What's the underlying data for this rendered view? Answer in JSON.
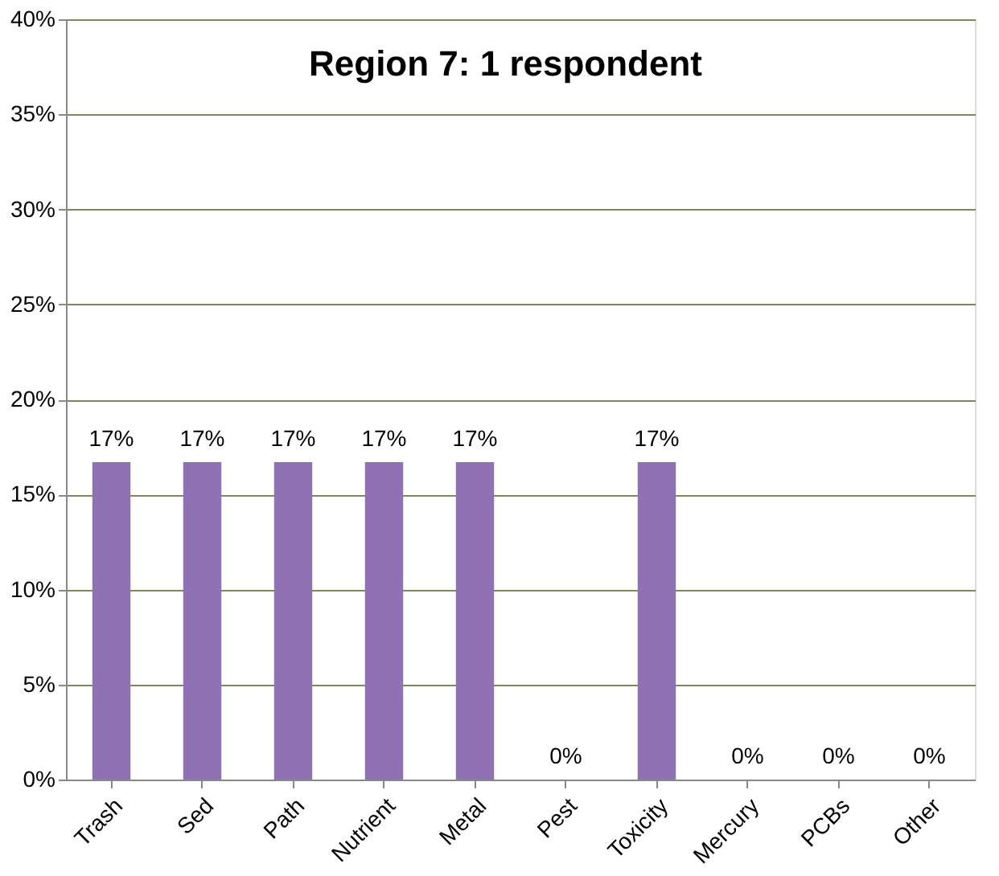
{
  "chart_data": {
    "type": "bar",
    "title": "Region 7: 1 respondent",
    "categories": [
      "Trash",
      "Sed",
      "Path",
      "Nutrient",
      "Metal",
      "Pest",
      "Toxicity",
      "Mercury",
      "PCBs",
      "Other"
    ],
    "values": [
      16.7,
      16.7,
      16.7,
      16.7,
      16.7,
      0,
      16.7,
      0,
      0,
      0
    ],
    "value_labels": [
      "17%",
      "17%",
      "17%",
      "17%",
      "17%",
      "0%",
      "17%",
      "0%",
      "0%",
      "0%"
    ],
    "color": "#8e72b4",
    "ylim": [
      0,
      40
    ],
    "yticks": [
      {
        "value": 0,
        "label": "0%"
      },
      {
        "value": 5,
        "label": "5%"
      },
      {
        "value": 10,
        "label": "10%"
      },
      {
        "value": 15,
        "label": "15%"
      },
      {
        "value": 20,
        "label": "20%"
      },
      {
        "value": 25,
        "label": "25%"
      },
      {
        "value": 30,
        "label": "30%"
      },
      {
        "value": 35,
        "label": "35%"
      },
      {
        "value": 40,
        "label": "40%"
      }
    ],
    "grid": "y"
  }
}
